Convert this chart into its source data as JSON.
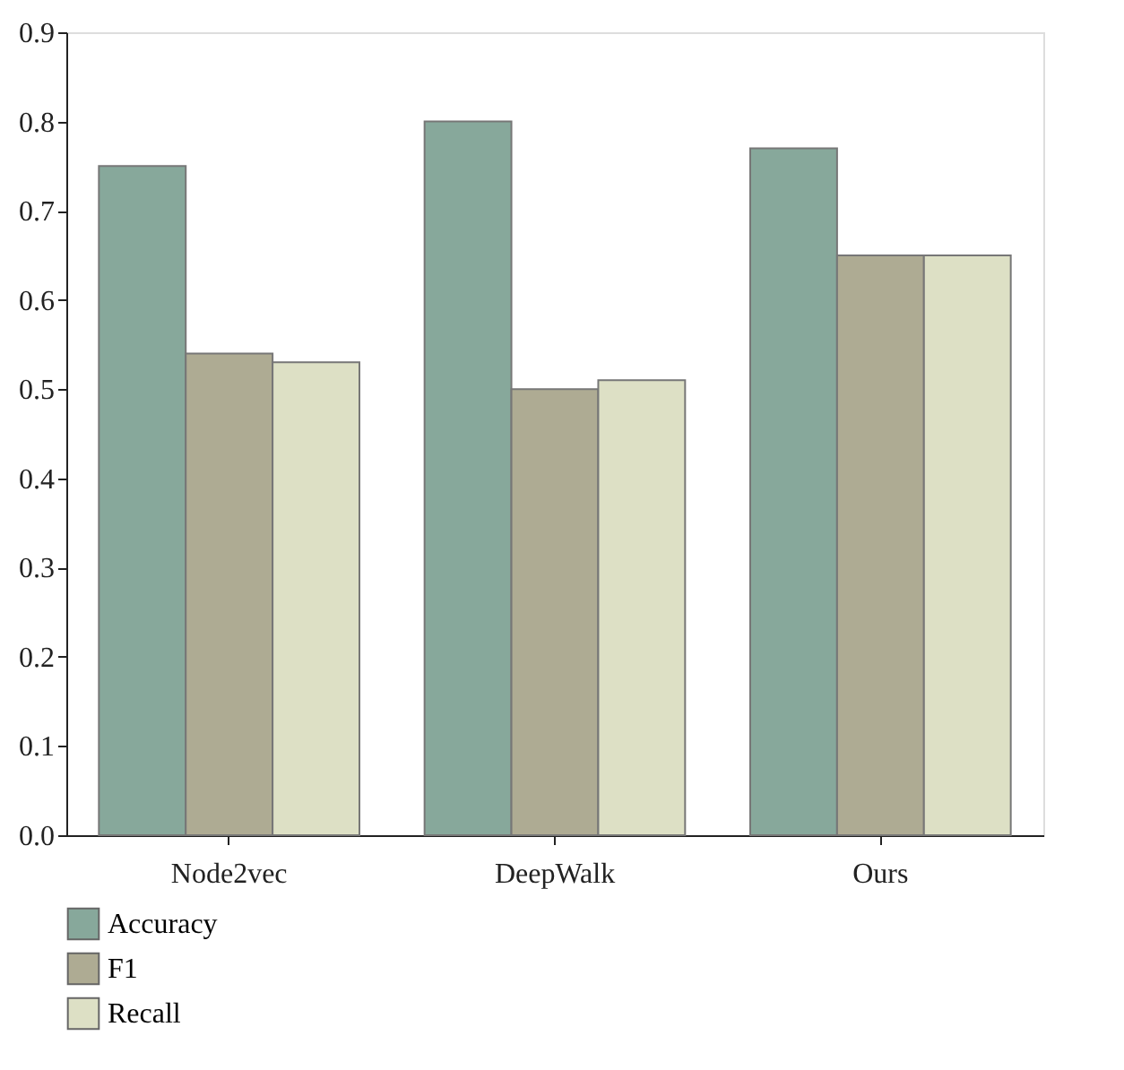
{
  "chart_data": {
    "type": "bar",
    "categories": [
      "Node2vec",
      "DeepWalk",
      "Ours"
    ],
    "series": [
      {
        "name": "Accuracy",
        "color": "#87a89b",
        "values": [
          0.75,
          0.8,
          0.77
        ]
      },
      {
        "name": "F1",
        "color": "#aeab93",
        "values": [
          0.54,
          0.5,
          0.65
        ]
      },
      {
        "name": "Recall",
        "color": "#dde0c5",
        "values": [
          0.53,
          0.51,
          0.65
        ]
      }
    ],
    "ylim": [
      0,
      0.9
    ],
    "yticks": [
      {
        "value": 0,
        "label": "0.0"
      },
      0.1,
      0.2,
      0.3,
      0.4,
      0.5,
      0.6,
      0.7,
      0.8,
      0.9
    ],
    "grid": false,
    "legend": "bottom"
  }
}
